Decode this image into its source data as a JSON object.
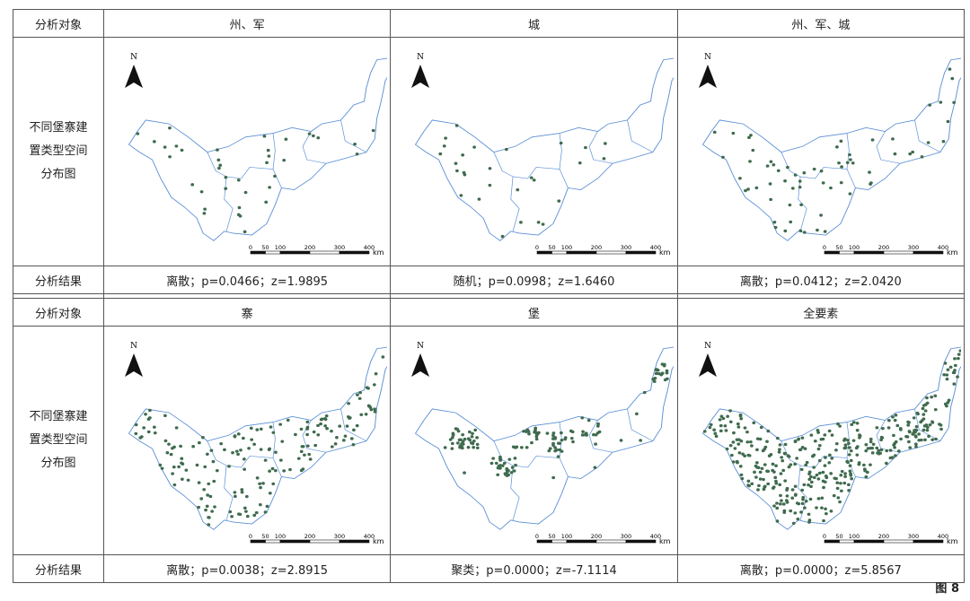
{
  "header_label": "分析对象",
  "row_stub": "不同堡寨建置类型空间分布图",
  "row_stub_lines": [
    "不同堡寨建",
    "置类型空间",
    "分布图"
  ],
  "result_label": "分析结果",
  "scalebar": {
    "ticks": [
      "0",
      "50",
      "100",
      "200",
      "300",
      "400"
    ],
    "unit": "km"
  },
  "north_label": "N",
  "point_color": "#3f6b4e",
  "panels": [
    {
      "title": "州、军",
      "result": "离散；p=0.0466；z=1.9895",
      "density": 38,
      "pattern": "dispersed"
    },
    {
      "title": "城",
      "result": "随机；p=0.0998；z=1.6460",
      "density": 28,
      "pattern": "random"
    },
    {
      "title": "州、军、城",
      "result": "离散；p=0.0412；z=2.0420",
      "density": 66,
      "pattern": "dispersed"
    },
    {
      "title": "寨",
      "result": "离散；p=0.0038；z=2.8915",
      "density": 175,
      "pattern": "dispersed"
    },
    {
      "title": "堡",
      "result": "聚类；p=0.0000；z=-7.1114",
      "density": 150,
      "pattern": "clustered"
    },
    {
      "title": "全要素",
      "result": "离散；p=0.0000；z=5.8567",
      "density": 380,
      "pattern": "dispersed"
    }
  ],
  "figure_label": "图 8"
}
